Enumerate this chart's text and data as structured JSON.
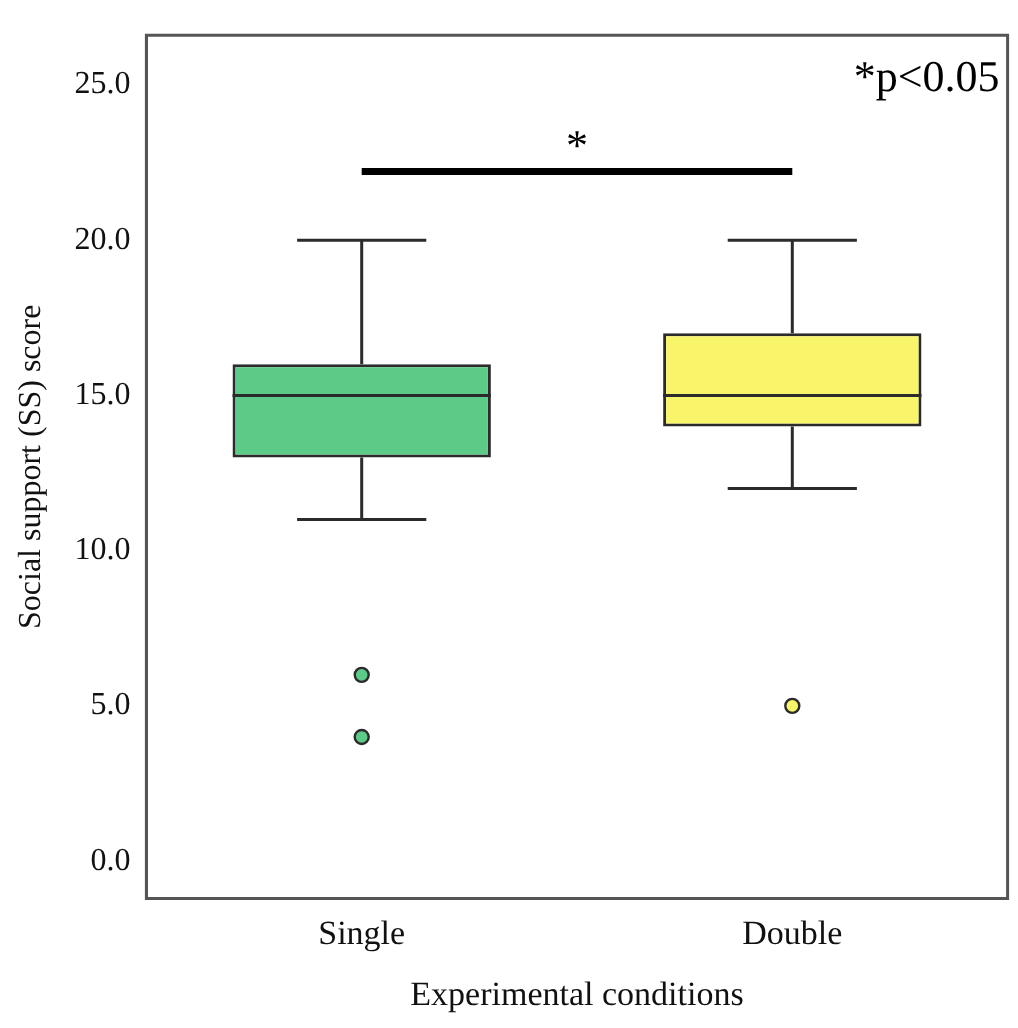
{
  "chart_data": {
    "type": "box",
    "xlabel": "Experimental conditions",
    "ylabel": "Social support (SS) score",
    "categories": [
      "Single",
      "Double"
    ],
    "colors": [
      "#5ccb88",
      "#f8f56a"
    ],
    "boxes": [
      {
        "low": 11,
        "q1": 13,
        "median": 15,
        "q3": 16,
        "high": 20,
        "outliers": [
          6,
          4
        ]
      },
      {
        "low": 12,
        "q1": 14,
        "median": 15,
        "q3": 17,
        "high": 20,
        "outliers": [
          5
        ]
      }
    ],
    "ylim": [
      -1.2,
      26.6
    ],
    "yticks": [
      {
        "value": 0,
        "label": "0.0"
      },
      {
        "value": 5,
        "label": "5.0"
      },
      {
        "value": 10,
        "label": "10.0"
      },
      {
        "value": 15,
        "label": "15.0"
      },
      {
        "value": 20,
        "label": "20.0"
      },
      {
        "value": 25,
        "label": "25.0"
      }
    ],
    "grid": false,
    "legend": false,
    "annotations": [
      "*",
      "*p<0.05"
    ]
  }
}
